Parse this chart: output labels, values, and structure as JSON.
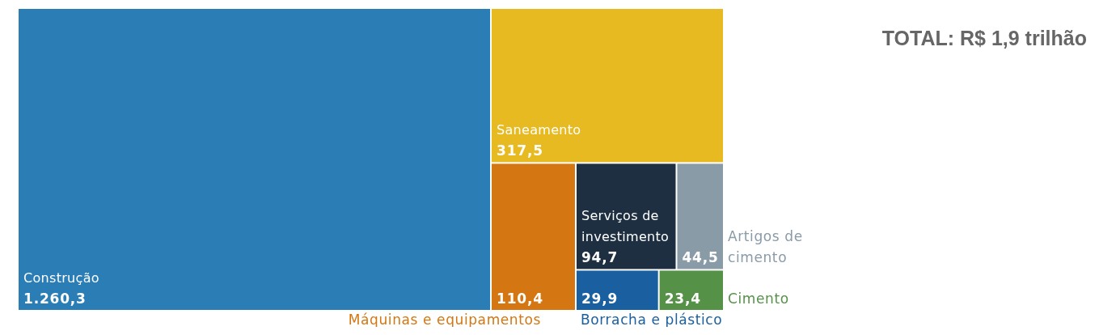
{
  "chart_data": {
    "type": "other",
    "title": "TOTAL: R$ 1,9 trilhão",
    "categories": [
      "Construção",
      "Saneamento",
      "Máquinas e equipamentos",
      "Serviços de investimento",
      "Artigos de cimento",
      "Borracha e plástico",
      "Cimento"
    ],
    "values": [
      1260.3,
      317.5,
      110.4,
      94.7,
      44.5,
      29.9,
      23.4
    ],
    "value_labels": [
      "1.260,3",
      "317,5",
      "110,4",
      "94,7",
      "44,5",
      "29,9",
      "23,4"
    ],
    "colors": [
      "#2a7db5",
      "#e8ba22",
      "#d47712",
      "#1f2f42",
      "#8a9ba8",
      "#1a5fa0",
      "#559248"
    ]
  }
}
